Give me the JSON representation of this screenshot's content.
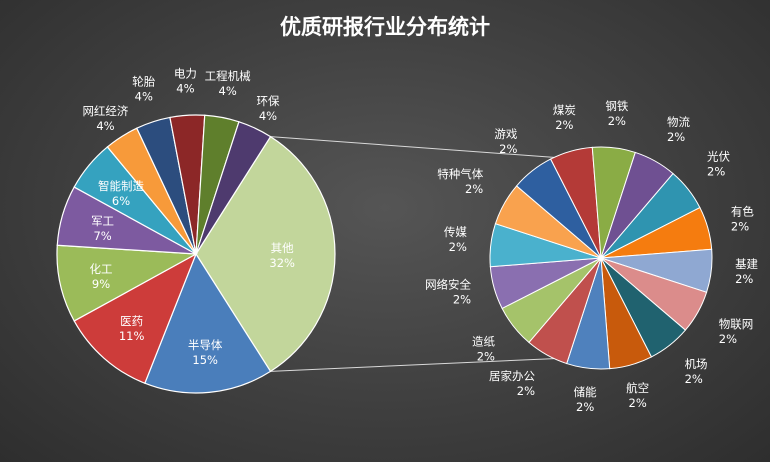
{
  "chart_data": {
    "type": "pie",
    "subtype": "pie-of-pie",
    "title": "优质研报行业分布统计",
    "unit": "%",
    "main_pie": [
      {
        "label": "其他",
        "value": 32,
        "pct": "32%",
        "color": "#c2d69b"
      },
      {
        "label": "半导体",
        "value": 15,
        "pct": "15%",
        "color": "#4a7ebb"
      },
      {
        "label": "医药",
        "value": 11,
        "pct": "11%",
        "color": "#cd3c3a"
      },
      {
        "label": "化工",
        "value": 9,
        "pct": "9%",
        "color": "#9bbb59"
      },
      {
        "label": "军工",
        "value": 7,
        "pct": "7%",
        "color": "#7d5aa0"
      },
      {
        "label": "智能制造",
        "value": 6,
        "pct": "6%",
        "color": "#35a2bf"
      },
      {
        "label": "网红经济",
        "value": 4,
        "pct": "4%",
        "color": "#f79a3a"
      },
      {
        "label": "轮胎",
        "value": 4,
        "pct": "4%",
        "color": "#2c4d7e"
      },
      {
        "label": "电力",
        "value": 4,
        "pct": "4%",
        "color": "#8c2727"
      },
      {
        "label": "工程机械",
        "value": 4,
        "pct": "4%",
        "color": "#5f7f2c"
      },
      {
        "label": "环保",
        "value": 4,
        "pct": "4%",
        "color": "#4e3a6e"
      }
    ],
    "secondary_pie": [
      {
        "label": "煤炭",
        "value": 2,
        "pct": "2%",
        "color": "#b43a37"
      },
      {
        "label": "钢铁",
        "value": 2,
        "pct": "2%",
        "color": "#8aac45"
      },
      {
        "label": "物流",
        "value": 2,
        "pct": "2%",
        "color": "#6f5092"
      },
      {
        "label": "光伏",
        "value": 2,
        "pct": "2%",
        "color": "#2f94b0"
      },
      {
        "label": "有色",
        "value": 2,
        "pct": "2%",
        "color": "#f57c0f"
      },
      {
        "label": "基建",
        "value": 2,
        "pct": "2%",
        "color": "#8fa8d2"
      },
      {
        "label": "物联网",
        "value": 2,
        "pct": "2%",
        "color": "#db8c8b"
      },
      {
        "label": "机场",
        "value": 2,
        "pct": "2%",
        "color": "#20626f"
      },
      {
        "label": "航空",
        "value": 2,
        "pct": "2%",
        "color": "#c85a0c"
      },
      {
        "label": "储能",
        "value": 2,
        "pct": "2%",
        "color": "#4f81bd"
      },
      {
        "label": "居家办公",
        "value": 2,
        "pct": "2%",
        "color": "#c0504d"
      },
      {
        "label": "造纸",
        "value": 2,
        "pct": "2%",
        "color": "#a5c36a"
      },
      {
        "label": "网络安全",
        "value": 2,
        "pct": "2%",
        "color": "#8a6fb0"
      },
      {
        "label": "传媒",
        "value": 2,
        "pct": "2%",
        "color": "#4ab1cd"
      },
      {
        "label": "特种气体",
        "value": 2,
        "pct": "2%",
        "color": "#f9a24e"
      },
      {
        "label": "游戏",
        "value": 2,
        "pct": "2%",
        "color": "#2e5fa0"
      }
    ]
  }
}
